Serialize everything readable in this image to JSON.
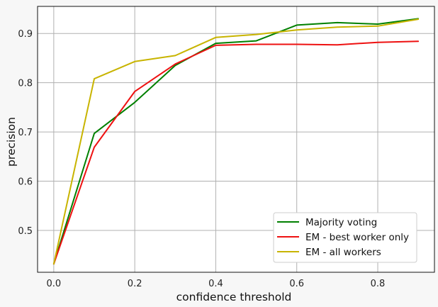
{
  "chart_data": {
    "type": "line",
    "xlabel": "confidence threshold",
    "ylabel": "precision",
    "xlim": [
      -0.04,
      0.94
    ],
    "ylim": [
      0.415,
      0.955
    ],
    "xticks": [
      0.0,
      0.2,
      0.4,
      0.6,
      0.8
    ],
    "xtick_labels": [
      "0.0",
      "0.2",
      "0.4",
      "0.6",
      "0.8"
    ],
    "yticks": [
      0.5,
      0.6,
      0.7,
      0.8,
      0.9
    ],
    "ytick_labels": [
      "0.5",
      "0.6",
      "0.7",
      "0.8",
      "0.9"
    ],
    "grid": true,
    "legend_position": "lower-right",
    "x": [
      0.0,
      0.1,
      0.2,
      0.3,
      0.4,
      0.5,
      0.6,
      0.7,
      0.8,
      0.9
    ],
    "series": [
      {
        "name": "Majority voting",
        "color": "#008000",
        "values": [
          0.432,
          0.697,
          0.76,
          0.835,
          0.88,
          0.885,
          0.917,
          0.922,
          0.919,
          0.93
        ]
      },
      {
        "name": "EM - best worker only",
        "color": "#ee1111",
        "values": [
          0.432,
          0.669,
          0.782,
          0.838,
          0.876,
          0.878,
          0.878,
          0.877,
          0.882,
          0.884
        ]
      },
      {
        "name": "EM - all workers",
        "color": "#c8b400",
        "values": [
          0.432,
          0.808,
          0.843,
          0.855,
          0.892,
          0.898,
          0.907,
          0.913,
          0.915,
          0.929
        ]
      }
    ]
  }
}
